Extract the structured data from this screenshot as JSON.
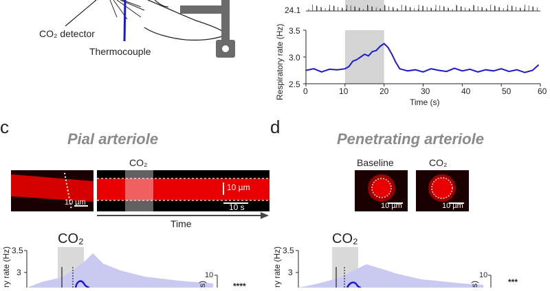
{
  "panel_a": {
    "co2_detector_label": "CO₂ detector",
    "thermocouple_label": "Thermocouple"
  },
  "panel_b": {
    "top_trace_tick": "24.1",
    "chart_data": {
      "type": "line",
      "title": "",
      "xlabel": "Time (s)",
      "ylabel": "Respiratory rate (Hz)",
      "xlim": [
        0,
        60
      ],
      "ylim": [
        2.5,
        3.5
      ],
      "xticks": [
        "0",
        "10",
        "20",
        "30",
        "40",
        "50",
        "60"
      ],
      "yticks": [
        "2.5",
        "3.0",
        "3.5"
      ],
      "stimulus_window": [
        10,
        20
      ],
      "series": [
        {
          "name": "Respiratory rate",
          "color": "#1a1acc",
          "x": [
            0,
            2,
            4,
            6,
            8,
            10,
            11,
            12,
            13,
            14,
            15,
            16,
            17,
            18,
            19,
            20,
            21,
            22,
            23,
            24,
            26,
            28,
            30,
            32,
            34,
            36,
            38,
            40,
            42,
            44,
            46,
            48,
            50,
            52,
            54,
            56,
            58,
            59.5
          ],
          "values": [
            2.75,
            2.78,
            2.72,
            2.77,
            2.76,
            2.78,
            2.82,
            2.92,
            2.95,
            3.0,
            3.05,
            3.02,
            3.1,
            3.12,
            3.2,
            3.25,
            3.18,
            3.05,
            2.9,
            2.78,
            2.74,
            2.76,
            2.72,
            2.78,
            2.75,
            2.73,
            2.79,
            2.74,
            2.77,
            2.72,
            2.76,
            2.74,
            2.78,
            2.73,
            2.76,
            2.71,
            2.75,
            2.85
          ]
        }
      ]
    }
  },
  "panel_c": {
    "letter": "c",
    "title": "Pial arteriole",
    "co2_label": "CO₂",
    "scale_10um_left": "10 µm",
    "scale_10um_kymo": "10 µm",
    "scale_10s": "10 s",
    "time_label": "Time",
    "bottom_co2": "CO₂",
    "bottom_ylabel": "ry rate (Hz)",
    "yticks": [
      "3.5",
      "3"
    ],
    "right_tick": "10",
    "right_label": "s)",
    "significance": "****"
  },
  "panel_d": {
    "letter": "d",
    "title": "Penetrating arteriole",
    "baseline_label": "Baseline",
    "co2_label": "CO₂",
    "scale_baseline": "10 µm",
    "scale_co2": "10 µm",
    "bottom_co2": "CO₂",
    "bottom_ylabel": "ry rate (Hz)",
    "yticks": [
      "3.5",
      "3"
    ],
    "right_tick": "10",
    "right_label": "s)",
    "significance": "***"
  }
}
